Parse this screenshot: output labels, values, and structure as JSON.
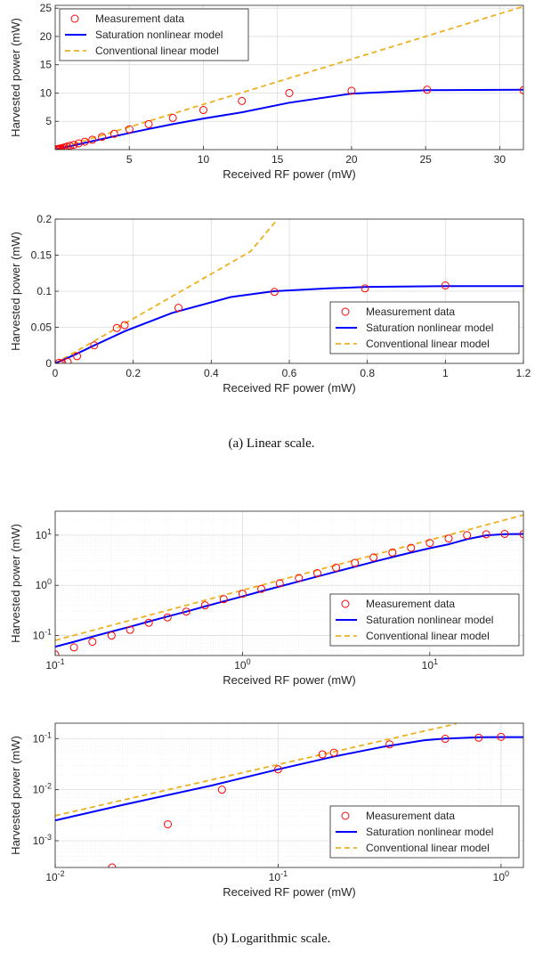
{
  "captions": {
    "a": "(a) Linear scale.",
    "b": "(b) Logarithmic scale."
  },
  "colors": {
    "measurement": "#ff0000",
    "saturation": "#0000ff",
    "linear": "#edb120",
    "grid": "#dcdcdc",
    "axis": "#262626"
  },
  "chart_data": [
    {
      "type": "line",
      "panel": "(a) top",
      "xscale": "linear",
      "yscale": "linear",
      "xlim": [
        0,
        31.6
      ],
      "ylim": [
        0,
        25.5
      ],
      "xticks": [
        5,
        10,
        15,
        20,
        25,
        30
      ],
      "xticklabels": [
        "5",
        "10",
        "15",
        "20",
        "25",
        "30"
      ],
      "yticks": [
        5,
        10,
        15,
        20,
        25
      ],
      "yticklabels": [
        "5",
        "10",
        "15",
        "20",
        "25"
      ],
      "xlabel": "Received RF power (mW)",
      "ylabel": "Harvested power (mW)",
      "grid": true,
      "legend_position": "top-left",
      "series": [
        {
          "name": "Measurement data",
          "style": "markers",
          "x": [
            0.1,
            0.126,
            0.158,
            0.2,
            0.251,
            0.316,
            0.398,
            0.501,
            0.631,
            0.794,
            1.0,
            1.26,
            1.58,
            2.0,
            2.51,
            3.16,
            3.98,
            5.01,
            6.31,
            7.94,
            10.0,
            12.6,
            15.8,
            20.0,
            25.1,
            31.6
          ],
          "y": [
            0.042,
            0.058,
            0.075,
            0.1,
            0.13,
            0.18,
            0.23,
            0.3,
            0.4,
            0.53,
            0.68,
            0.85,
            1.1,
            1.4,
            1.75,
            2.25,
            2.8,
            3.6,
            4.5,
            5.6,
            7.0,
            8.6,
            10.0,
            10.4,
            10.6,
            10.5
          ]
        },
        {
          "name": "Saturation nonlinear model",
          "style": "solid",
          "x": [
            0.1,
            0.126,
            0.158,
            0.2,
            0.251,
            0.316,
            0.398,
            0.501,
            0.631,
            0.794,
            1.0,
            1.26,
            1.58,
            2.0,
            2.51,
            3.16,
            3.98,
            5.01,
            6.31,
            7.94,
            10.0,
            12.6,
            15.8,
            20.0,
            25.1,
            31.6
          ],
          "y": [
            0.06,
            0.075,
            0.095,
            0.12,
            0.15,
            0.19,
            0.24,
            0.3,
            0.38,
            0.48,
            0.6,
            0.76,
            0.95,
            1.2,
            1.5,
            1.88,
            2.35,
            2.94,
            3.65,
            4.5,
            5.5,
            6.6,
            8.3,
            9.9,
            10.5,
            10.6
          ]
        },
        {
          "name": "Conventional linear model",
          "style": "dashed",
          "x": [
            0.1,
            0.2,
            0.5,
            1.0,
            2.0,
            5.0,
            10.0,
            20.0,
            31.6
          ],
          "y": [
            0.08,
            0.16,
            0.4,
            0.8,
            1.6,
            4.0,
            8.0,
            16.0,
            25.3
          ]
        }
      ]
    },
    {
      "type": "line",
      "panel": "(a) bottom",
      "xscale": "linear",
      "yscale": "linear",
      "xlim": [
        0,
        1.2
      ],
      "ylim": [
        0,
        0.2
      ],
      "xticks": [
        0,
        0.2,
        0.4,
        0.6,
        0.8,
        1,
        1.2
      ],
      "xticklabels": [
        "0",
        "0.2",
        "0.4",
        "0.6",
        "0.8",
        "1",
        "1.2"
      ],
      "yticks": [
        0,
        0.05,
        0.1,
        0.15,
        0.2
      ],
      "yticklabels": [
        "0",
        "0.05",
        "0.1",
        "0.15",
        "0.2"
      ],
      "xlabel": "Received RF power (mW)",
      "ylabel": "Harvested power (mW)",
      "grid": true,
      "legend_position": "bottom-right",
      "series": [
        {
          "name": "Measurement data",
          "style": "markers",
          "x": [
            0.01,
            0.018,
            0.032,
            0.056,
            0.1,
            0.158,
            0.178,
            0.316,
            0.562,
            0.794,
            1.0
          ],
          "y": [
            0.0008,
            0.0003,
            0.0021,
            0.01,
            0.025,
            0.049,
            0.053,
            0.077,
            0.099,
            0.104,
            0.108
          ]
        },
        {
          "name": "Saturation nonlinear model",
          "style": "solid",
          "x": [
            0,
            0.05,
            0.1,
            0.18,
            0.3,
            0.45,
            0.56,
            0.7,
            0.8,
            1.0,
            1.2
          ],
          "y": [
            0,
            0.012,
            0.025,
            0.045,
            0.07,
            0.092,
            0.1,
            0.104,
            0.106,
            0.107,
            0.107
          ]
        },
        {
          "name": "Conventional linear model",
          "style": "dashed",
          "x": [
            0,
            0.1,
            0.2,
            0.3,
            0.4,
            0.5,
            0.57
          ],
          "y": [
            0,
            0.031,
            0.062,
            0.093,
            0.124,
            0.155,
            0.2
          ]
        }
      ]
    },
    {
      "type": "line",
      "panel": "(b) top",
      "xscale": "log",
      "yscale": "log",
      "xlim": [
        0.1,
        31.6
      ],
      "ylim": [
        0.04,
        30
      ],
      "xticks": [
        0.1,
        1,
        10
      ],
      "xticklabels": [
        "10^-1",
        "10^0",
        "10^1"
      ],
      "yticks": [
        0.1,
        1,
        10
      ],
      "yticklabels": [
        "10^-1",
        "10^0",
        "10^1"
      ],
      "xlabel": "Received RF power (mW)",
      "ylabel": "Harvested power (mW)",
      "grid": true,
      "legend_position": "bottom-right",
      "series": [
        {
          "name": "Measurement data",
          "style": "markers",
          "x": [
            0.1,
            0.126,
            0.158,
            0.2,
            0.251,
            0.316,
            0.398,
            0.501,
            0.631,
            0.794,
            1.0,
            1.26,
            1.58,
            2.0,
            2.51,
            3.16,
            3.98,
            5.01,
            6.31,
            7.94,
            10.0,
            12.6,
            15.8,
            20.0,
            25.1,
            31.6
          ],
          "y": [
            0.042,
            0.058,
            0.075,
            0.1,
            0.13,
            0.18,
            0.23,
            0.3,
            0.4,
            0.53,
            0.68,
            0.85,
            1.1,
            1.4,
            1.75,
            2.25,
            2.8,
            3.6,
            4.5,
            5.6,
            7.0,
            8.6,
            10.0,
            10.4,
            10.6,
            10.5
          ]
        },
        {
          "name": "Saturation nonlinear model",
          "style": "solid",
          "x": [
            0.1,
            0.126,
            0.158,
            0.2,
            0.251,
            0.316,
            0.398,
            0.501,
            0.631,
            0.794,
            1.0,
            1.26,
            1.58,
            2.0,
            2.51,
            3.16,
            3.98,
            5.01,
            6.31,
            7.94,
            10.0,
            12.6,
            15.8,
            20.0,
            25.1,
            31.6
          ],
          "y": [
            0.06,
            0.075,
            0.095,
            0.12,
            0.15,
            0.19,
            0.24,
            0.3,
            0.38,
            0.48,
            0.6,
            0.76,
            0.95,
            1.2,
            1.5,
            1.88,
            2.35,
            2.94,
            3.65,
            4.5,
            5.5,
            6.6,
            8.3,
            9.9,
            10.5,
            10.6
          ]
        },
        {
          "name": "Conventional linear model",
          "style": "dashed",
          "x": [
            0.1,
            0.2,
            0.5,
            1.0,
            2.0,
            5.0,
            10.0,
            20.0,
            31.6
          ],
          "y": [
            0.08,
            0.16,
            0.4,
            0.8,
            1.6,
            4.0,
            8.0,
            16.0,
            25.3
          ]
        }
      ]
    },
    {
      "type": "line",
      "panel": "(b) bottom",
      "xscale": "log",
      "yscale": "log",
      "xlim": [
        0.01,
        1.26
      ],
      "ylim": [
        0.0003,
        0.2
      ],
      "xticks": [
        0.01,
        0.1,
        1
      ],
      "xticklabels": [
        "10^-2",
        "10^-1",
        "10^0"
      ],
      "yticks": [
        0.001,
        0.01,
        0.1
      ],
      "yticklabels": [
        "10^-3",
        "10^-2",
        "10^-1"
      ],
      "xlabel": "Received RF power (mW)",
      "ylabel": "Harvested power (mW)",
      "grid": true,
      "legend_position": "bottom-right",
      "series": [
        {
          "name": "Measurement data",
          "style": "markers",
          "x": [
            0.018,
            0.032,
            0.056,
            0.1,
            0.158,
            0.178,
            0.316,
            0.562,
            0.794,
            1.0
          ],
          "y": [
            0.0003,
            0.0021,
            0.01,
            0.025,
            0.049,
            0.053,
            0.077,
            0.099,
            0.104,
            0.108
          ]
        },
        {
          "name": "Saturation nonlinear model",
          "style": "solid",
          "x": [
            0.01,
            0.02,
            0.05,
            0.1,
            0.18,
            0.3,
            0.45,
            0.56,
            0.8,
            1.0,
            1.26
          ],
          "y": [
            0.0025,
            0.005,
            0.012,
            0.025,
            0.045,
            0.07,
            0.092,
            0.1,
            0.106,
            0.107,
            0.107
          ]
        },
        {
          "name": "Conventional linear model",
          "style": "dashed",
          "x": [
            0.01,
            0.02,
            0.05,
            0.1,
            0.2,
            0.4,
            0.63
          ],
          "y": [
            0.0031,
            0.0062,
            0.0155,
            0.031,
            0.062,
            0.124,
            0.195
          ]
        }
      ]
    }
  ]
}
